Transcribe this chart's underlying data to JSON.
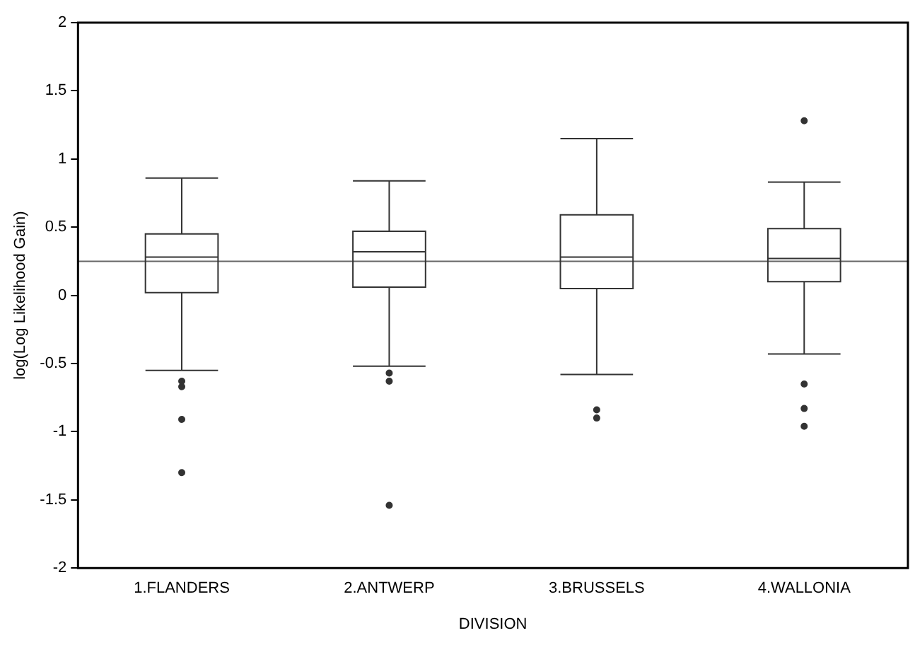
{
  "chart_data": {
    "type": "box",
    "xlabel": "DIVISION",
    "ylabel": "log(Log Likelihood Gain)",
    "categories": [
      "1.FLANDERS",
      "2.ANTWERP",
      "3.BRUSSELS",
      "4.WALLONIA"
    ],
    "boxes": [
      {
        "low": -0.55,
        "q1": 0.02,
        "median": 0.28,
        "q3": 0.45,
        "high": 0.86,
        "outliers": [
          -0.63,
          -0.67,
          -0.91,
          -1.3
        ]
      },
      {
        "low": -0.52,
        "q1": 0.06,
        "median": 0.32,
        "q3": 0.47,
        "high": 0.84,
        "outliers": [
          -0.57,
          -0.63,
          -1.54
        ]
      },
      {
        "low": -0.58,
        "q1": 0.05,
        "median": 0.28,
        "q3": 0.59,
        "high": 1.15,
        "outliers": [
          -0.84,
          -0.9
        ]
      },
      {
        "low": -0.43,
        "q1": 0.1,
        "median": 0.27,
        "q3": 0.49,
        "high": 0.83,
        "outliers": [
          1.28,
          -0.65,
          -0.83,
          -0.96
        ]
      }
    ],
    "color": "#333333",
    "ylim": [
      -2,
      2
    ],
    "yticks": [
      -2,
      -1.5,
      -1,
      -0.5,
      0,
      0.5,
      1,
      1.5,
      2
    ],
    "ref_lines": [
      {
        "axis": "y",
        "value": 0.25,
        "color": "#666666"
      }
    ],
    "grid": false,
    "legend": false,
    "marker": "circle"
  }
}
